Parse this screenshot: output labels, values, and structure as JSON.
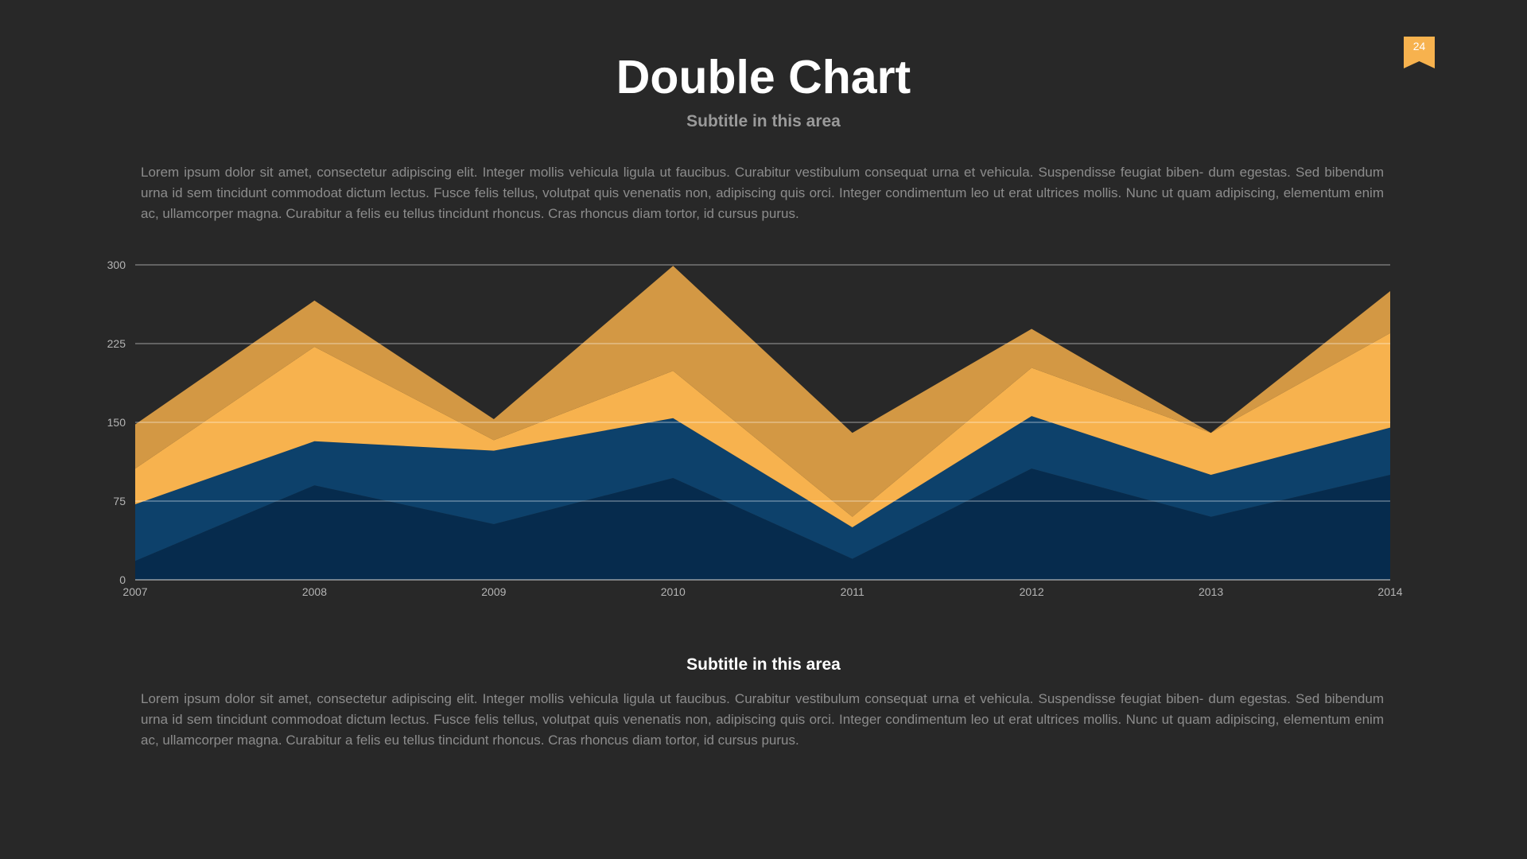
{
  "slide": {
    "title": "Double Chart",
    "subtitle_top": "Subtitle in this area",
    "paragraph_top": "Lorem ipsum dolor sit amet, consectetur adipiscing elit. Integer mollis vehicula ligula ut faucibus. Curabitur vestibulum consequat urna et vehicula. Suspendisse feugiat biben- dum egestas. Sed bibendum urna id sem tincidunt commodoat dictum lectus. Fusce felis tellus, volutpat quis venenatis non, adipiscing quis orci. Integer condimentum leo ut erat ultrices mollis. Nunc ut quam adipiscing, elementum enim ac, ullamcorper magna. Curabitur a felis eu tellus tincidunt rhoncus. Cras rhoncus diam tortor, id cursus purus.",
    "subtitle_bottom": "Subtitle in this area",
    "paragraph_bottom": "Lorem ipsum dolor sit amet, consectetur adipiscing elit. Integer mollis vehicula ligula ut faucibus. Curabitur vestibulum consequat urna et vehicula. Suspendisse feugiat biben- dum egestas. Sed bibendum urna id sem tincidunt commodoat dictum lectus. Fusce felis tellus, volutpat quis venenatis non, adipiscing quis orci. Integer condimentum leo ut erat ultrices mollis. Nunc ut quam adipiscing, elementum enim ac, ullamcorper magna. Curabitur a felis eu tellus tincidunt rhoncus. Cras rhoncus diam tortor, id cursus purus.",
    "page_number": "24",
    "badge_icon": "bookmark-icon",
    "colors": {
      "background": "#282828",
      "badge": "#f7b24e"
    }
  },
  "chart_data": {
    "type": "area",
    "stacked": true,
    "title": "",
    "xlabel": "",
    "ylabel": "",
    "x": [
      "2007",
      "2008",
      "2009",
      "2010",
      "2011",
      "2012",
      "2013",
      "2014"
    ],
    "ylim": [
      0,
      300
    ],
    "yticks": [
      0,
      75,
      150,
      225,
      300
    ],
    "grid": true,
    "legend": "none",
    "series": [
      {
        "values": [
          18,
          90,
          53,
          97,
          20,
          106,
          60,
          100
        ],
        "color": "#062b4d"
      },
      {
        "values": [
          54,
          42,
          70,
          57,
          30,
          50,
          40,
          45
        ],
        "color": "#0d416b"
      },
      {
        "values": [
          34,
          90,
          10,
          45,
          10,
          46,
          40,
          90
        ],
        "color": "#f7b24e"
      },
      {
        "values": [
          42,
          44,
          20,
          100,
          80,
          37,
          0,
          40
        ],
        "color": "#d39844"
      }
    ]
  }
}
